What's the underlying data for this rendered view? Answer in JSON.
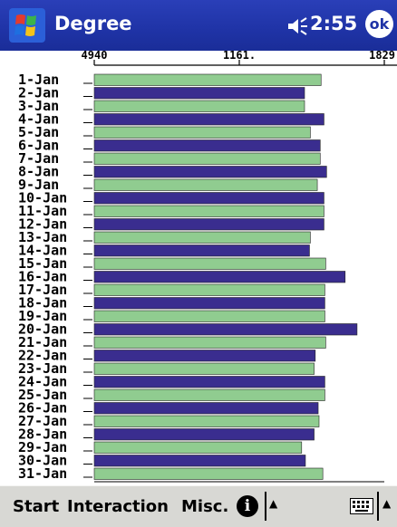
{
  "title_bar": {
    "app_title": "Degree",
    "time": "2:55",
    "ok_label": "ok",
    "icons": [
      "windows-flag-icon",
      "speaker-icon"
    ]
  },
  "chart_data": {
    "type": "bar",
    "orientation": "horizontal",
    "title": "",
    "xlabel": "",
    "ylabel": "",
    "axis_ticks": [
      "4940",
      "1161.",
      "1829"
    ],
    "categories": [
      "1-Jan",
      "2-Jan",
      "3-Jan",
      "4-Jan",
      "5-Jan",
      "6-Jan",
      "7-Jan",
      "8-Jan",
      "9-Jan",
      "10-Jan",
      "11-Jan",
      "12-Jan",
      "13-Jan",
      "14-Jan",
      "15-Jan",
      "16-Jan",
      "17-Jan",
      "18-Jan",
      "19-Jan",
      "20-Jan",
      "21-Jan",
      "22-Jan",
      "23-Jan",
      "24-Jan",
      "25-Jan",
      "26-Jan",
      "27-Jan",
      "28-Jan",
      "29-Jan",
      "30-Jan",
      "31-Jan"
    ],
    "values": [
      0.782,
      0.725,
      0.725,
      0.792,
      0.745,
      0.779,
      0.779,
      0.801,
      0.769,
      0.792,
      0.792,
      0.792,
      0.745,
      0.742,
      0.798,
      0.865,
      0.795,
      0.795,
      0.795,
      0.906,
      0.798,
      0.762,
      0.758,
      0.795,
      0.795,
      0.772,
      0.775,
      0.758,
      0.715,
      0.728,
      0.788
    ],
    "value_scale": "fraction of axis span",
    "colors": [
      "#90cc90",
      "#3a2d8f"
    ],
    "grid": false,
    "legend": "none"
  },
  "taskbar": {
    "start": "Start",
    "interaction": "Interaction",
    "misc": "Misc.",
    "info_icon": "i",
    "up_arrow": "▲"
  }
}
